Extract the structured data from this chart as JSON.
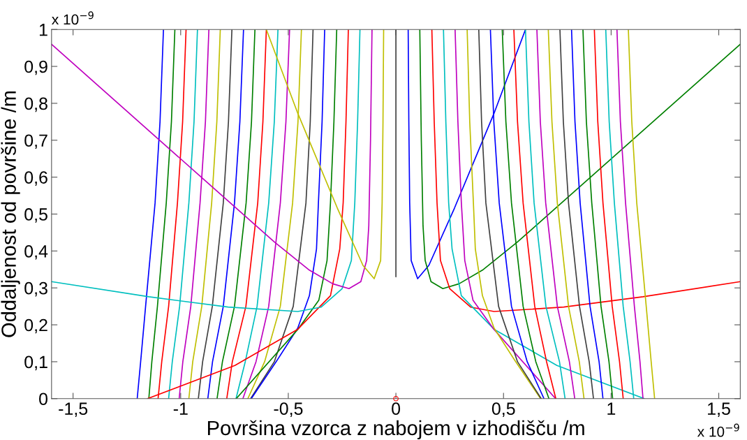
{
  "chart_data": {
    "type": "line",
    "xlabel": "Površina vzorca z nabojem v izhodišču /m",
    "ylabel": "Oddaljenost od površine /m",
    "annotations": [
      "x 10$^{−9}$",
      "x 10$^{−9}$"
    ],
    "xlim": [
      -1.6,
      1.6
    ],
    "ylim": [
      0,
      1
    ],
    "xticks": [
      {
        "value": -1.5,
        "label": "-1,5"
      },
      {
        "value": -1,
        "label": "-1"
      },
      {
        "value": -0.5,
        "label": "-0,5"
      },
      0,
      {
        "value": 0.5,
        "label": "0,5"
      },
      1,
      {
        "value": 1.5,
        "label": "1,5"
      }
    ],
    "yticks": [
      0,
      {
        "value": 0.1,
        "label": "0,1"
      },
      {
        "value": 0.2,
        "label": "0,2"
      },
      {
        "value": 0.3,
        "label": "0,3"
      },
      {
        "value": 0.4,
        "label": "0,4"
      },
      {
        "value": 0.5,
        "label": "0,5"
      },
      {
        "value": 0.6,
        "label": "0,6"
      },
      {
        "value": 0.7,
        "label": "0,7"
      },
      {
        "value": 0.8,
        "label": "0,8"
      },
      {
        "value": 0.9,
        "label": "0,9"
      },
      1
    ],
    "series": [
      {
        "color": "#0000ff",
        "x": [
          -1.202,
          -1.186,
          -1.163,
          -1.119,
          -1.096,
          -1.08
        ],
        "values": [
          0,
          0.1,
          0.25,
          0.53,
          0.75,
          1
        ]
      },
      {
        "color": "#008000",
        "x": [
          -1.148,
          -1.134,
          -1.108,
          -1.067,
          -1.043,
          -1.027
        ],
        "values": [
          0,
          0.1,
          0.25,
          0.53,
          0.75,
          1
        ]
      },
      {
        "color": "#ff0000",
        "x": [
          -1.105,
          -1.088,
          -1.056,
          -1.015,
          -0.991,
          -0.975
        ],
        "values": [
          0,
          0.1,
          0.25,
          0.53,
          0.75,
          1
        ]
      },
      {
        "color": "#00bfbf",
        "x": [
          -1.056,
          -1.039,
          -1.005,
          -0.962,
          -0.938,
          -0.922
        ],
        "values": [
          0,
          0.1,
          0.25,
          0.53,
          0.75,
          1
        ]
      },
      {
        "color": "#bf00bf",
        "x": [
          -1.007,
          -0.99,
          -0.953,
          -0.91,
          -0.885,
          -0.869
        ],
        "values": [
          0,
          0.1,
          0.25,
          0.53,
          0.75,
          1
        ]
      },
      {
        "color": "#bfbf00",
        "x": [
          -0.962,
          -0.944,
          -0.902,
          -0.856,
          -0.832,
          -0.816
        ],
        "values": [
          0,
          0.1,
          0.25,
          0.53,
          0.75,
          1
        ]
      },
      {
        "color": "#404040",
        "x": [
          -0.918,
          -0.898,
          -0.853,
          -0.802,
          -0.778,
          -0.762
        ],
        "values": [
          0,
          0.1,
          0.25,
          0.53,
          0.75,
          1
        ]
      },
      {
        "color": "#0000ff",
        "x": [
          -0.874,
          -0.852,
          -0.802,
          -0.75,
          -0.725,
          -0.708
        ],
        "values": [
          0,
          0.1,
          0.25,
          0.53,
          0.75,
          1
        ]
      },
      {
        "color": "#008000",
        "x": [
          -0.831,
          -0.806,
          -0.75,
          -0.696,
          -0.671,
          -0.655
        ],
        "values": [
          0,
          0.1,
          0.25,
          0.53,
          0.75,
          1
        ]
      },
      {
        "color": "#ff0000",
        "x": [
          -0.786,
          -0.76,
          -0.697,
          -0.642,
          -0.618,
          -0.602
        ],
        "values": [
          0,
          0.1,
          0.25,
          0.53,
          0.75,
          1
        ]
      },
      {
        "color": "#00bfbf",
        "x": [
          -0.743,
          -0.7,
          -0.645,
          -0.591,
          -0.565,
          -0.548
        ],
        "values": [
          0,
          0.1,
          0.25,
          0.53,
          0.75,
          1
        ]
      },
      {
        "color": "#bf00bf",
        "x": [
          -0.711,
          -0.65,
          -0.591,
          -0.537,
          -0.511,
          -0.494
        ],
        "values": [
          0,
          0.1,
          0.25,
          0.53,
          0.75,
          1
        ]
      },
      {
        "color": "#bfbf00",
        "x": [
          -0.688,
          -0.61,
          -0.537,
          -0.48,
          -0.455,
          -0.439
        ],
        "values": [
          0,
          0.1,
          0.25,
          0.53,
          0.75,
          1
        ]
      },
      {
        "color": "#404040",
        "x": [
          -0.675,
          -0.565,
          -0.477,
          -0.418,
          -0.398,
          -0.385
        ],
        "values": [
          0,
          0.1,
          0.25,
          0.53,
          0.75,
          1
        ]
      },
      {
        "color": "#0000ff",
        "x": [
          -0.672,
          -0.553,
          -0.456,
          -0.402,
          -0.369,
          -0.36,
          -0.343,
          -0.331
        ],
        "values": [
          0,
          0.103,
          0.191,
          0.279,
          0.405,
          0.531,
          0.75,
          1
        ]
      },
      {
        "color": "#008000",
        "x": [
          -0.742,
          -0.455,
          -0.358,
          -0.32,
          -0.304,
          -0.288,
          -0.275
        ],
        "values": [
          0,
          0.188,
          0.267,
          0.374,
          0.531,
          0.75,
          1
        ]
      },
      {
        "color": "#ff0000",
        "x": [
          -1.154,
          -0.748,
          -0.456,
          -0.304,
          -0.261,
          -0.245,
          -0.232,
          -0.221
        ],
        "values": [
          0,
          0.09,
          0.188,
          0.279,
          0.405,
          0.531,
          0.75,
          1
        ]
      },
      {
        "color": "#00bfbf",
        "x": [
          -1.6,
          -1.148,
          -0.78,
          -0.456,
          -0.347,
          -0.25,
          -0.207,
          -0.191,
          -0.178,
          -0.167
        ],
        "values": [
          0.317,
          0.276,
          0.248,
          0.236,
          0.248,
          0.298,
          0.374,
          0.531,
          0.75,
          1
        ]
      },
      {
        "color": "#bf00bf",
        "x": [
          -1.6,
          -0.748,
          -0.564,
          -0.402,
          -0.293,
          -0.218,
          -0.163,
          -0.136,
          -0.126,
          -0.118,
          -0.111
        ],
        "values": [
          0.96,
          0.519,
          0.424,
          0.348,
          0.311,
          0.298,
          0.317,
          0.374,
          0.468,
          0.7,
          1
        ]
      },
      {
        "color": "#bfbf00",
        "x": [
          -0.602,
          -0.456,
          -0.272,
          -0.153,
          -0.101,
          -0.071,
          -0.064,
          -0.06,
          -0.057
        ],
        "values": [
          1,
          0.773,
          0.516,
          0.361,
          0.325,
          0.374,
          0.531,
          0.75,
          1
        ]
      },
      {
        "color": "#404040",
        "x": [
          0,
          0
        ],
        "values": [
          0.33,
          1
        ]
      },
      {
        "color": "#0000ff",
        "x": [
          0.602,
          0.456,
          0.272,
          0.153,
          0.101,
          0.071,
          0.064,
          0.06,
          0.057
        ],
        "values": [
          1,
          0.773,
          0.516,
          0.361,
          0.325,
          0.374,
          0.531,
          0.75,
          1
        ]
      },
      {
        "color": "#008000",
        "x": [
          1.6,
          0.748,
          0.564,
          0.402,
          0.293,
          0.218,
          0.163,
          0.136,
          0.126,
          0.118,
          0.111
        ],
        "values": [
          0.96,
          0.519,
          0.424,
          0.348,
          0.311,
          0.298,
          0.317,
          0.374,
          0.468,
          0.7,
          1
        ]
      },
      {
        "color": "#ff0000",
        "x": [
          1.6,
          1.148,
          0.78,
          0.456,
          0.347,
          0.25,
          0.207,
          0.191,
          0.178,
          0.167
        ],
        "values": [
          0.317,
          0.276,
          0.248,
          0.236,
          0.248,
          0.298,
          0.374,
          0.531,
          0.75,
          1
        ]
      },
      {
        "color": "#00bfbf",
        "x": [
          1.154,
          0.748,
          0.456,
          0.304,
          0.261,
          0.245,
          0.232,
          0.221
        ],
        "values": [
          0,
          0.09,
          0.188,
          0.279,
          0.405,
          0.531,
          0.75,
          1
        ]
      },
      {
        "color": "#bf00bf",
        "x": [
          0.742,
          0.455,
          0.358,
          0.32,
          0.304,
          0.288,
          0.275
        ],
        "values": [
          0,
          0.188,
          0.267,
          0.374,
          0.531,
          0.75,
          1
        ]
      },
      {
        "color": "#bfbf00",
        "x": [
          0.672,
          0.553,
          0.456,
          0.402,
          0.369,
          0.36,
          0.343,
          0.331
        ],
        "values": [
          0,
          0.103,
          0.191,
          0.279,
          0.405,
          0.531,
          0.75,
          1
        ]
      },
      {
        "color": "#404040",
        "x": [
          0.675,
          0.565,
          0.477,
          0.418,
          0.398,
          0.385
        ],
        "values": [
          0,
          0.1,
          0.25,
          0.53,
          0.75,
          1
        ]
      },
      {
        "color": "#0000ff",
        "x": [
          0.688,
          0.61,
          0.537,
          0.48,
          0.455,
          0.439
        ],
        "values": [
          0,
          0.1,
          0.25,
          0.53,
          0.75,
          1
        ]
      },
      {
        "color": "#008000",
        "x": [
          0.711,
          0.65,
          0.591,
          0.537,
          0.511,
          0.494
        ],
        "values": [
          0,
          0.1,
          0.25,
          0.53,
          0.75,
          1
        ]
      },
      {
        "color": "#ff0000",
        "x": [
          0.743,
          0.7,
          0.645,
          0.591,
          0.565,
          0.548
        ],
        "values": [
          0,
          0.1,
          0.25,
          0.53,
          0.75,
          1
        ]
      },
      {
        "color": "#00bfbf",
        "x": [
          0.786,
          0.76,
          0.697,
          0.642,
          0.618,
          0.602
        ],
        "values": [
          0,
          0.1,
          0.25,
          0.53,
          0.75,
          1
        ]
      },
      {
        "color": "#bf00bf",
        "x": [
          0.831,
          0.806,
          0.75,
          0.696,
          0.671,
          0.655
        ],
        "values": [
          0,
          0.1,
          0.25,
          0.53,
          0.75,
          1
        ]
      },
      {
        "color": "#bfbf00",
        "x": [
          0.874,
          0.852,
          0.802,
          0.75,
          0.725,
          0.708
        ],
        "values": [
          0,
          0.1,
          0.25,
          0.53,
          0.75,
          1
        ]
      },
      {
        "color": "#404040",
        "x": [
          0.918,
          0.898,
          0.853,
          0.802,
          0.778,
          0.762
        ],
        "values": [
          0,
          0.1,
          0.25,
          0.53,
          0.75,
          1
        ]
      },
      {
        "color": "#0000ff",
        "x": [
          0.962,
          0.944,
          0.902,
          0.856,
          0.832,
          0.816
        ],
        "values": [
          0,
          0.1,
          0.25,
          0.53,
          0.75,
          1
        ]
      },
      {
        "color": "#008000",
        "x": [
          1.007,
          0.99,
          0.953,
          0.91,
          0.885,
          0.869
        ],
        "values": [
          0,
          0.1,
          0.25,
          0.53,
          0.75,
          1
        ]
      },
      {
        "color": "#ff0000",
        "x": [
          1.056,
          1.039,
          1.005,
          0.962,
          0.938,
          0.922
        ],
        "values": [
          0,
          0.1,
          0.25,
          0.53,
          0.75,
          1
        ]
      },
      {
        "color": "#00bfbf",
        "x": [
          1.105,
          1.088,
          1.056,
          1.015,
          0.991,
          0.975
        ],
        "values": [
          0,
          0.1,
          0.25,
          0.53,
          0.75,
          1
        ]
      },
      {
        "color": "#bf00bf",
        "x": [
          1.148,
          1.134,
          1.108,
          1.067,
          1.043,
          1.027
        ],
        "values": [
          0,
          0.1,
          0.25,
          0.53,
          0.75,
          1
        ]
      },
      {
        "color": "#bfbf00",
        "x": [
          1.202,
          1.186,
          1.163,
          1.119,
          1.096,
          1.08
        ],
        "values": [
          0,
          0.1,
          0.25,
          0.53,
          0.75,
          1
        ]
      },
      {
        "type": "scatter",
        "marker": "circle",
        "color": "#ff0000",
        "x": [
          0
        ],
        "values": [
          0
        ]
      }
    ]
  }
}
